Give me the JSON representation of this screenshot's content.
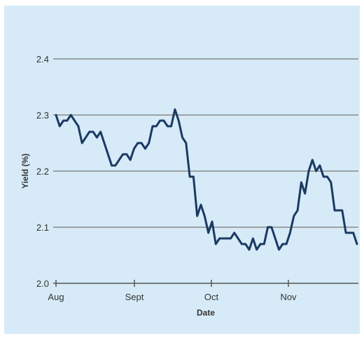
{
  "chart_data": {
    "type": "line",
    "title": "",
    "xlabel": "Date",
    "ylabel": "Yield (%)",
    "ylim": [
      2.0,
      2.4
    ],
    "yticks": [
      "2.0",
      "2.1",
      "2.2",
      "2.3",
      "2.4"
    ],
    "xticks": [
      "Aug",
      "Sept",
      "Oct",
      "Nov"
    ],
    "grid": "horizontal",
    "series": [
      {
        "values": [
          2.3,
          2.28,
          2.29,
          2.29,
          2.3,
          2.29,
          2.28,
          2.25,
          2.26,
          2.27,
          2.27,
          2.26,
          2.27,
          2.25,
          2.23,
          2.21,
          2.21,
          2.22,
          2.23,
          2.23,
          2.22,
          2.24,
          2.25,
          2.25,
          2.24,
          2.25,
          2.28,
          2.28,
          2.29,
          2.29,
          2.28,
          2.28,
          2.31,
          2.29,
          2.26,
          2.25,
          2.19,
          2.19,
          2.12,
          2.14,
          2.12,
          2.09,
          2.11,
          2.07,
          2.08,
          2.08,
          2.08,
          2.08,
          2.09,
          2.08,
          2.07,
          2.07,
          2.06,
          2.08,
          2.06,
          2.07,
          2.07,
          2.1,
          2.1,
          2.08,
          2.06,
          2.07,
          2.07,
          2.09,
          2.12,
          2.13,
          2.18,
          2.16,
          2.2,
          2.22,
          2.2,
          2.21,
          2.19,
          2.19,
          2.18,
          2.13,
          2.13,
          2.13,
          2.09,
          2.09,
          2.09,
          2.07
        ]
      }
    ]
  },
  "colors": {
    "background": "#d6ebf7",
    "line": "#1b3a63",
    "grid": "#8a8a8a"
  }
}
